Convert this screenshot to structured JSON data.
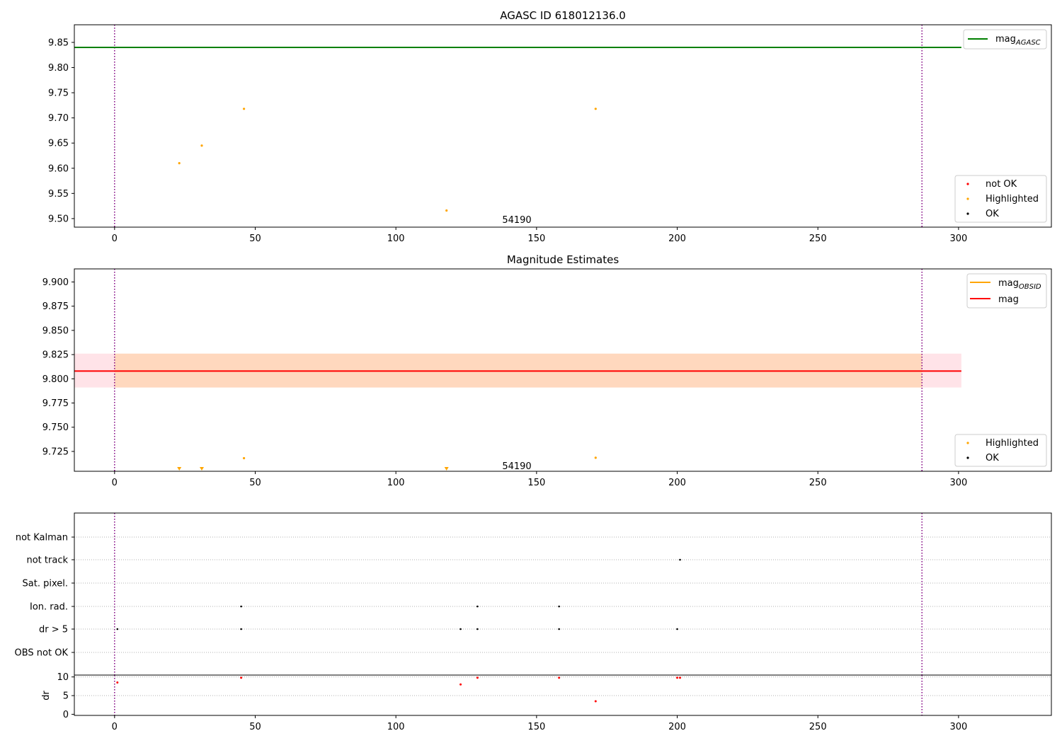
{
  "chart_data": [
    {
      "type": "scatter",
      "title": "AGASC ID 618012136.0",
      "xlim": [
        -14.3,
        333.0
      ],
      "ylim": [
        9.483,
        9.885
      ],
      "xticks": [
        0,
        50,
        100,
        150,
        200,
        250,
        300
      ],
      "yticks": [
        9.5,
        9.55,
        9.6,
        9.65,
        9.7,
        9.75,
        9.8,
        9.85
      ],
      "ytick_labels": [
        "9.50",
        "9.55",
        "9.60",
        "9.65",
        "9.70",
        "9.75",
        "9.80",
        "9.85"
      ],
      "vlines": [
        0,
        287
      ],
      "vline_color": "#800080",
      "hline": {
        "label": "mag",
        "subscript": "AGASC",
        "value": 9.84,
        "color": "#008000"
      },
      "annotation": {
        "text": "54190",
        "x": 143,
        "y": 9.497
      },
      "legend_top": {
        "location": "upper right",
        "entries": [
          {
            "label": "mag",
            "subscript": "AGASC",
            "color": "#008000"
          }
        ]
      },
      "legend_bottom": {
        "location": "lower right",
        "entries": [
          {
            "label": "not OK",
            "color": "#ff0000"
          },
          {
            "label": "Highlighted",
            "color": "#ffa500"
          },
          {
            "label": "OK",
            "color": "#000000"
          }
        ]
      },
      "series": [
        {
          "name": "Highlighted",
          "color": "#ffa500",
          "points": [
            [
              23,
              9.61
            ],
            [
              31,
              9.645
            ],
            [
              46,
              9.718
            ],
            [
              118,
              9.516
            ],
            [
              171,
              9.718
            ]
          ]
        }
      ]
    },
    {
      "type": "scatter",
      "title": "Magnitude Estimates",
      "xlim": [
        -14.3,
        333.0
      ],
      "ylim": [
        9.7045,
        9.9135
      ],
      "xticks": [
        0,
        50,
        100,
        150,
        200,
        250,
        300
      ],
      "yticks": [
        9.725,
        9.75,
        9.775,
        9.8,
        9.825,
        9.85,
        9.875,
        9.9
      ],
      "ytick_labels": [
        "9.725",
        "9.750",
        "9.775",
        "9.800",
        "9.825",
        "9.850",
        "9.875",
        "9.900"
      ],
      "vlines": [
        0,
        287
      ],
      "vline_color": "#800080",
      "mag_line": {
        "label": "mag",
        "value": 9.808,
        "color": "#ff0000"
      },
      "mag_band": {
        "y_low": 9.791,
        "y_high": 9.826,
        "x_range": [
          -14.3,
          301
        ],
        "outer_color": "#ffc0cb",
        "inner_color": "#ffa500"
      },
      "annotation": {
        "text": "54190",
        "x": 143,
        "y": 9.7095
      },
      "legend_top": {
        "location": "upper right",
        "entries": [
          {
            "label": "mag",
            "subscript": "OBSID",
            "color": "#ffa500"
          },
          {
            "label": "mag",
            "color": "#ff0000"
          }
        ]
      },
      "legend_bottom": {
        "location": "lower right",
        "entries": [
          {
            "label": "Highlighted",
            "color": "#ffa500"
          },
          {
            "label": "OK",
            "color": "#000000"
          }
        ]
      },
      "series": [
        {
          "name": "Highlighted",
          "color": "#ffa500",
          "points": [
            [
              46,
              9.718
            ],
            [
              171,
              9.7185
            ]
          ]
        },
        {
          "name": "Highlighted (below axis)",
          "color": "#ffa500",
          "points": [
            [
              23,
              9.7045
            ],
            [
              31,
              9.7045
            ],
            [
              118,
              9.7045
            ]
          ]
        }
      ]
    },
    {
      "type": "scatter",
      "title": "",
      "xlim": [
        -14.3,
        333.0
      ],
      "ylabels": [
        "not Kalman",
        "not track",
        "Sat. pixel.",
        "Ion. rad.",
        "dr > 5",
        "OBS not OK"
      ],
      "vlines": [
        0,
        287
      ],
      "vline_color": "#800080",
      "flag_points": [
        {
          "row": "not track",
          "x": [
            201
          ]
        },
        {
          "row": "Ion. rad.",
          "x": [
            45,
            129,
            158
          ]
        },
        {
          "row": "dr > 5",
          "x": [
            1,
            45,
            123,
            129,
            158,
            200
          ]
        }
      ]
    },
    {
      "type": "scatter",
      "title": "",
      "ylabel": "dr",
      "xlim": [
        -14.3,
        333.0
      ],
      "ylim": [
        -0.3,
        10.5
      ],
      "xticks": [
        0,
        50,
        100,
        150,
        200,
        250,
        300
      ],
      "yticks": [
        0,
        5,
        10
      ],
      "vlines": [
        0,
        287
      ],
      "vline_color": "#800080",
      "series": [
        {
          "name": "dr > 5",
          "color": "#ff0000",
          "points": [
            [
              1,
              8.5
            ],
            [
              45,
              9.8
            ],
            [
              123,
              8.0
            ],
            [
              129,
              9.8
            ],
            [
              158,
              9.8
            ],
            [
              171,
              3.5
            ],
            [
              200,
              9.8
            ],
            [
              201,
              9.8
            ]
          ]
        }
      ]
    }
  ]
}
